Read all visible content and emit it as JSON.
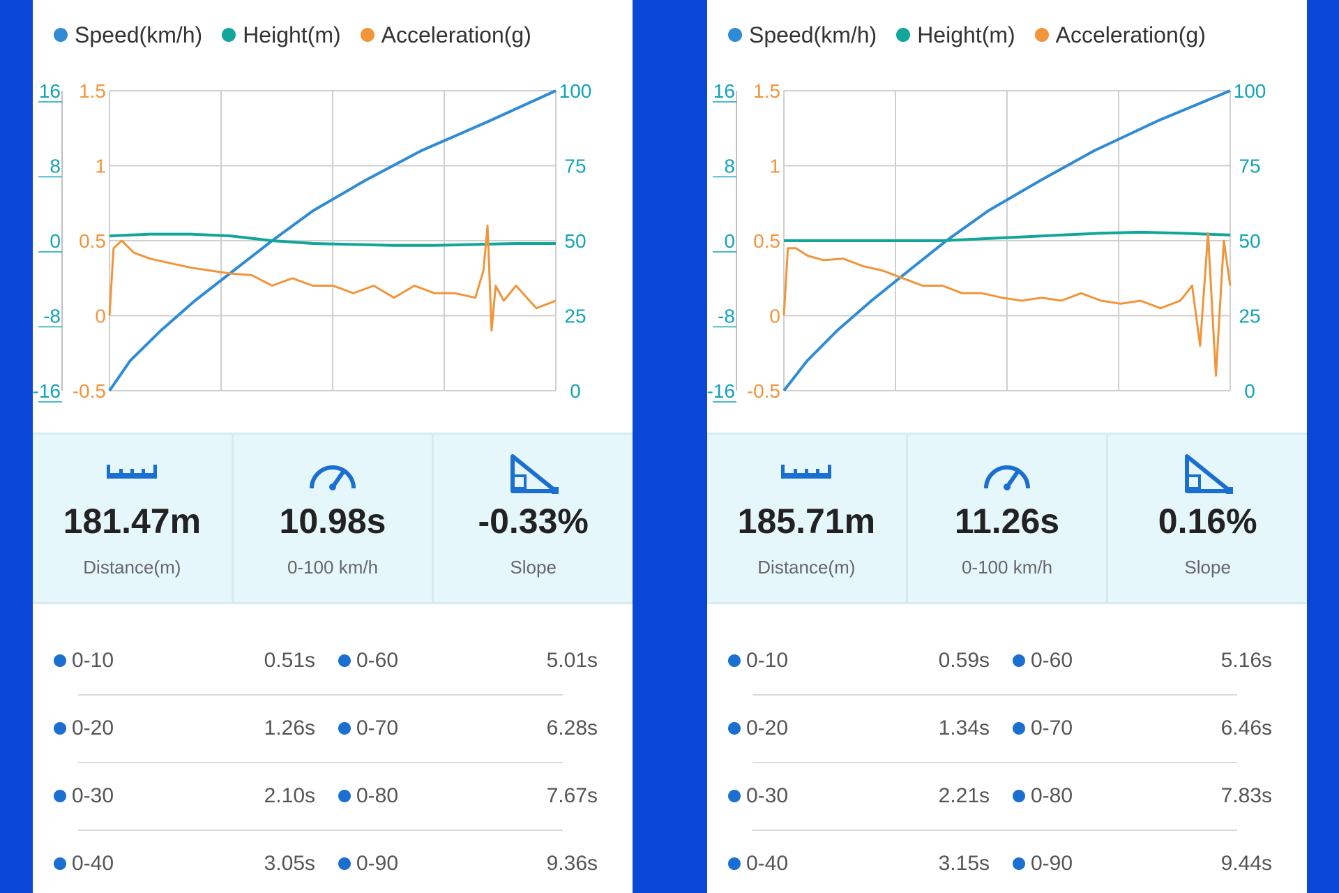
{
  "colors": {
    "speed": "#2f8bd3",
    "height": "#12a69a",
    "accel": "#f0953a",
    "axis_left": "#12a3b7",
    "icon": "#1a6fd0",
    "background": "#0b47d6"
  },
  "legend": [
    {
      "label": "Speed(km/h)",
      "color": "#2f8bd3"
    },
    {
      "label": "Height(m)",
      "color": "#12a69a"
    },
    {
      "label": "Acceleration(g)",
      "color": "#f0953a"
    }
  ],
  "panels": [
    {
      "chart_data": {
        "type": "line",
        "height_axis": {
          "ticks": [
            "16",
            "8",
            "0",
            "-8",
            "-16"
          ],
          "range": [
            -16,
            16
          ]
        },
        "accel_axis": {
          "ticks": [
            "1.5",
            "1",
            "0.5",
            "0",
            "-0.5"
          ],
          "range": [
            -0.5,
            1.5
          ]
        },
        "speed_axis": {
          "ticks": [
            "100",
            "75",
            "50",
            "25",
            "0"
          ],
          "range": [
            0,
            100
          ]
        },
        "x_range": [
          0,
          10.98
        ],
        "grid": true,
        "series": [
          {
            "name": "Speed(km/h)",
            "x": [
              0,
              0.51,
              1.26,
              2.1,
              3.05,
              4,
              5.01,
              6.28,
              7.67,
              9.36,
              10.98
            ],
            "y": [
              0,
              10,
              20,
              30,
              40,
              50,
              60,
              70,
              80,
              90,
              100
            ]
          },
          {
            "name": "Height(m)",
            "x": [
              0,
              1,
              2,
              3,
              4,
              5,
              6,
              7,
              8,
              9,
              10,
              10.98
            ],
            "y": [
              0.5,
              0.7,
              0.7,
              0.5,
              0,
              -0.3,
              -0.4,
              -0.5,
              -0.5,
              -0.4,
              -0.3,
              -0.3
            ]
          },
          {
            "name": "Acceleration(g)",
            "x": [
              0,
              0.1,
              0.3,
              0.6,
              1,
              1.5,
              2,
              2.5,
              3,
              3.5,
              4,
              4.5,
              5,
              5.5,
              6,
              6.5,
              7,
              7.5,
              8,
              8.5,
              9,
              9.2,
              9.3,
              9.4,
              9.5,
              9.7,
              10,
              10.5,
              10.98
            ],
            "y": [
              0,
              0.45,
              0.5,
              0.42,
              0.38,
              0.35,
              0.32,
              0.3,
              0.28,
              0.27,
              0.2,
              0.25,
              0.2,
              0.2,
              0.15,
              0.2,
              0.12,
              0.2,
              0.15,
              0.15,
              0.12,
              0.3,
              0.6,
              -0.1,
              0.2,
              0.1,
              0.2,
              0.05,
              0.1
            ]
          }
        ]
      },
      "stats": [
        {
          "value": "181.47m",
          "label": "Distance(m)"
        },
        {
          "value": "10.98s",
          "label": "0-100 km/h"
        },
        {
          "value": "-0.33%",
          "label": "Slope"
        }
      ],
      "times": [
        {
          "a_name": "0-10",
          "a_val": "0.51s",
          "b_name": "0-60",
          "b_val": "5.01s"
        },
        {
          "a_name": "0-20",
          "a_val": "1.26s",
          "b_name": "0-70",
          "b_val": "6.28s"
        },
        {
          "a_name": "0-30",
          "a_val": "2.10s",
          "b_name": "0-80",
          "b_val": "7.67s"
        },
        {
          "a_name": "0-40",
          "a_val": "3.05s",
          "b_name": "0-90",
          "b_val": "9.36s"
        }
      ]
    },
    {
      "chart_data": {
        "type": "line",
        "height_axis": {
          "ticks": [
            "16",
            "8",
            "0",
            "-8",
            "-16"
          ],
          "range": [
            -16,
            16
          ]
        },
        "accel_axis": {
          "ticks": [
            "1.5",
            "1",
            "0.5",
            "0",
            "-0.5"
          ],
          "range": [
            -0.5,
            1.5
          ]
        },
        "speed_axis": {
          "ticks": [
            "100",
            "75",
            "50",
            "25",
            "0"
          ],
          "range": [
            0,
            100
          ]
        },
        "x_range": [
          0,
          11.26
        ],
        "grid": true,
        "series": [
          {
            "name": "Speed(km/h)",
            "x": [
              0,
              0.59,
              1.34,
              2.21,
              3.15,
              4.1,
              5.16,
              6.46,
              7.83,
              9.44,
              11.26
            ],
            "y": [
              0,
              10,
              20,
              30,
              40,
              50,
              60,
              70,
              80,
              90,
              100
            ]
          },
          {
            "name": "Height(m)",
            "x": [
              0,
              1,
              2,
              3,
              4,
              5,
              6,
              7,
              8,
              9,
              10,
              11.26
            ],
            "y": [
              0,
              0,
              0,
              0,
              0,
              0.2,
              0.4,
              0.6,
              0.8,
              0.9,
              0.8,
              0.6
            ]
          },
          {
            "name": "Acceleration(g)",
            "x": [
              0,
              0.1,
              0.3,
              0.6,
              1,
              1.5,
              2,
              2.5,
              3,
              3.5,
              4,
              4.5,
              5,
              5.5,
              6,
              6.5,
              7,
              7.5,
              8,
              8.5,
              9,
              9.5,
              10,
              10.3,
              10.5,
              10.7,
              10.9,
              11.1,
              11.26
            ],
            "y": [
              0,
              0.45,
              0.45,
              0.4,
              0.37,
              0.38,
              0.33,
              0.3,
              0.25,
              0.2,
              0.2,
              0.15,
              0.15,
              0.12,
              0.1,
              0.12,
              0.1,
              0.15,
              0.1,
              0.08,
              0.1,
              0.05,
              0.1,
              0.2,
              -0.2,
              0.55,
              -0.4,
              0.5,
              0.2
            ]
          }
        ]
      },
      "stats": [
        {
          "value": "185.71m",
          "label": "Distance(m)"
        },
        {
          "value": "11.26s",
          "label": "0-100 km/h"
        },
        {
          "value": "0.16%",
          "label": "Slope"
        }
      ],
      "times": [
        {
          "a_name": "0-10",
          "a_val": "0.59s",
          "b_name": "0-60",
          "b_val": "5.16s"
        },
        {
          "a_name": "0-20",
          "a_val": "1.34s",
          "b_name": "0-70",
          "b_val": "6.46s"
        },
        {
          "a_name": "0-30",
          "a_val": "2.21s",
          "b_name": "0-80",
          "b_val": "7.83s"
        },
        {
          "a_name": "0-40",
          "a_val": "3.15s",
          "b_name": "0-90",
          "b_val": "9.44s"
        }
      ]
    }
  ]
}
